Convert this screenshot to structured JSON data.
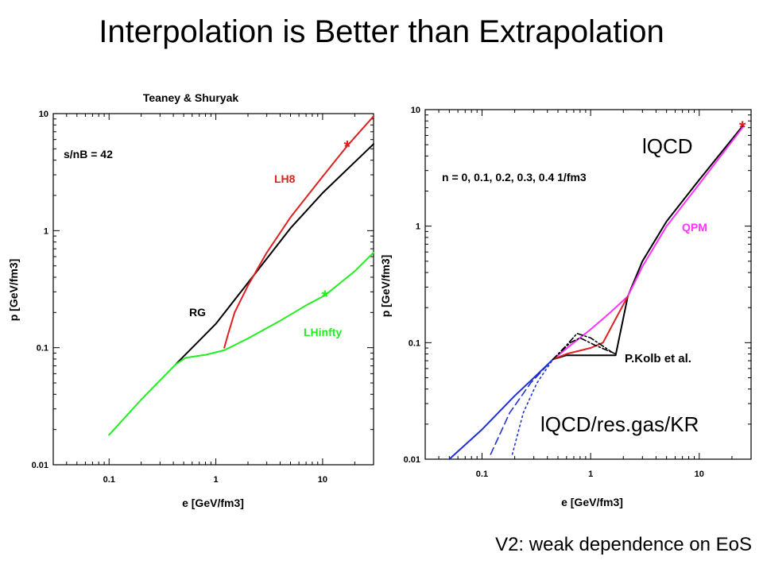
{
  "slide": {
    "title": "Interpolation is Better than Extrapolation",
    "footer": "V2: weak dependence on EoS"
  },
  "chart_data": [
    {
      "type": "line",
      "title": "Teaney & Shuryak",
      "xlabel": "e [GeV/fm3]",
      "ylabel": "p [GeV/fm3]",
      "x_scale": "log",
      "y_scale": "log",
      "xlim": [
        0.03,
        30
      ],
      "ylim": [
        0.01,
        10
      ],
      "x_ticks": [
        "0.1",
        "1",
        "10"
      ],
      "y_ticks": [
        "0.01",
        "0.1",
        "1",
        "10"
      ],
      "annotation": "s/nB = 42",
      "colors": {
        "RG": "#000000",
        "LH8": "#e02020",
        "LHinfty": "#22ee22"
      },
      "series": [
        {
          "name": "RG",
          "color": "#000000",
          "points": [
            [
              0.42,
              0.072
            ],
            [
              1,
              0.16
            ],
            [
              2.1,
              0.38
            ],
            [
              5,
              1.05
            ],
            [
              10,
              2.1
            ],
            [
              30,
              5.5
            ]
          ]
        },
        {
          "name": "LH8",
          "color": "#e02020",
          "points": [
            [
              1.2,
              0.1
            ],
            [
              1.3,
              0.13
            ],
            [
              1.5,
              0.2
            ],
            [
              2,
              0.34
            ],
            [
              3,
              0.65
            ],
            [
              5,
              1.3
            ],
            [
              10,
              2.9
            ],
            [
              17,
              5.3
            ],
            [
              30,
              9.5
            ]
          ]
        },
        {
          "name": "LHinfty",
          "color": "#22ee22",
          "points": [
            [
              0.1,
              0.018
            ],
            [
              0.2,
              0.036
            ],
            [
              0.42,
              0.072
            ],
            [
              0.52,
              0.082
            ],
            [
              0.8,
              0.087
            ],
            [
              1.2,
              0.095
            ],
            [
              2,
              0.12
            ],
            [
              4,
              0.17
            ],
            [
              7,
              0.23
            ],
            [
              10.5,
              0.28
            ],
            [
              20,
              0.45
            ],
            [
              30,
              0.65
            ]
          ]
        }
      ],
      "markers": [
        {
          "series": "LH8",
          "x": 17,
          "y": 5.3,
          "symbol": "*"
        },
        {
          "series": "LHinfty",
          "x": 10.5,
          "y": 0.28,
          "symbol": "*"
        }
      ]
    },
    {
      "type": "line",
      "title": "",
      "xlabel": "e [GeV/fm3]",
      "ylabel": "p [GeV/fm3]",
      "x_scale": "log",
      "y_scale": "log",
      "xlim": [
        0.03,
        30
      ],
      "ylim": [
        0.01,
        10
      ],
      "x_ticks": [
        "0.1",
        "1",
        "10"
      ],
      "y_ticks": [
        "0.01",
        "0.1",
        "1",
        "10"
      ],
      "annotation": "n = 0, 0.1, 0.2, 0.3, 0.4 1/fm3",
      "labels": [
        "lQCD",
        "QPM",
        "P.Kolb et al.",
        "lQCD/res.gas/KR"
      ],
      "colors": {
        "lQCD": "#000000",
        "QPM": "#ff33ff",
        "KR": "#e02020",
        "resgas": "#2030d0"
      },
      "series": [
        {
          "name": "lQCD",
          "color": "#000000",
          "points": [
            [
              0.45,
              0.072
            ],
            [
              0.6,
              0.078
            ],
            [
              1,
              0.078
            ],
            [
              1.7,
              0.078
            ],
            [
              2.2,
              0.25
            ],
            [
              3,
              0.5
            ],
            [
              5,
              1.1
            ],
            [
              10,
              2.5
            ],
            [
              25,
              7.2
            ]
          ]
        },
        {
          "name": "QPM",
          "color": "#ff33ff",
          "points": [
            [
              0.45,
              0.072
            ],
            [
              0.7,
              0.1
            ],
            [
              1,
              0.13
            ],
            [
              1.5,
              0.18
            ],
            [
              2.2,
              0.25
            ],
            [
              3,
              0.45
            ],
            [
              5,
              1.0
            ],
            [
              10,
              2.3
            ],
            [
              25,
              7.0
            ]
          ]
        },
        {
          "name": "KR",
          "color": "#e02020",
          "points": [
            [
              0.45,
              0.072
            ],
            [
              0.6,
              0.08
            ],
            [
              1,
              0.09
            ],
            [
              1.3,
              0.1
            ],
            [
              1.7,
              0.16
            ],
            [
              2.2,
              0.25
            ]
          ]
        },
        {
          "name": "res.gas",
          "color": "#2030d0",
          "points": [
            [
              0.05,
              0.01
            ],
            [
              0.1,
              0.018
            ],
            [
              0.2,
              0.035
            ],
            [
              0.3,
              0.05
            ],
            [
              0.45,
              0.072
            ]
          ]
        },
        {
          "name": "res.gas n=0.2",
          "color": "#2030d0",
          "style": "dashed",
          "points": [
            [
              0.12,
              0.011
            ],
            [
              0.18,
              0.025
            ],
            [
              0.28,
              0.045
            ],
            [
              0.45,
              0.072
            ]
          ]
        },
        {
          "name": "res.gas n=0.4",
          "color": "#2030d0",
          "style": "dotted",
          "points": [
            [
              0.19,
              0.011
            ],
            [
              0.24,
              0.025
            ],
            [
              0.32,
              0.045
            ],
            [
              0.45,
              0.072
            ]
          ]
        },
        {
          "name": "Kolb n=0.2",
          "color": "#000000",
          "style": "dashdot",
          "points": [
            [
              0.45,
              0.072
            ],
            [
              0.65,
              0.1
            ],
            [
              0.8,
              0.11
            ],
            [
              1.1,
              0.095
            ],
            [
              1.7,
              0.08
            ]
          ]
        },
        {
          "name": "Kolb n=0.4",
          "color": "#000000",
          "style": "dashdot",
          "points": [
            [
              0.45,
              0.072
            ],
            [
              0.6,
              0.095
            ],
            [
              0.75,
              0.12
            ],
            [
              1.0,
              0.11
            ],
            [
              1.6,
              0.082
            ]
          ]
        }
      ],
      "markers": [
        {
          "series": "lQCD",
          "x": 25,
          "y": 7.2,
          "symbol": "*"
        }
      ]
    }
  ]
}
